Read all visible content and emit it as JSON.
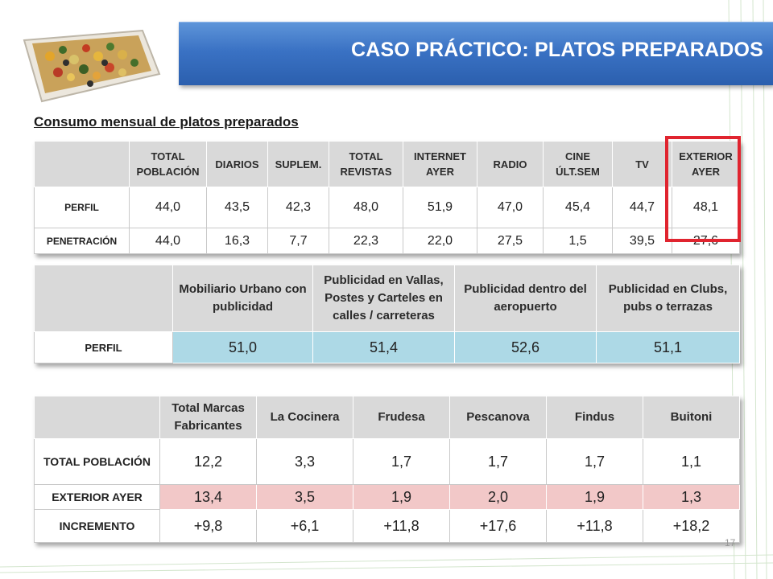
{
  "slide": {
    "title": "CASO PRÁCTICO: PLATOS PREPARADOS",
    "subtitle": "Consumo mensual de platos preparados",
    "page_number": "17"
  },
  "table1": {
    "headers": [
      "TOTAL POBLACIÓN",
      "DIARIOS",
      "SUPLEM.",
      "TOTAL REVISTAS",
      "INTERNET AYER",
      "RADIO",
      "CINE ÚLT.SEM",
      "TV",
      "EXTERIOR AYER"
    ],
    "rows": [
      {
        "label": "PERFIL",
        "values": [
          "44,0",
          "43,5",
          "42,3",
          "48,0",
          "51,9",
          "47,0",
          "45,4",
          "44,7",
          "48,1"
        ]
      },
      {
        "label": "PENETRACIÓN",
        "values": [
          "44,0",
          "16,3",
          "7,7",
          "22,3",
          "22,0",
          "27,5",
          "1,5",
          "39,5",
          "27,6"
        ]
      }
    ]
  },
  "table2": {
    "headers": [
      "Mobiliario Urbano con publicidad",
      "Publicidad en Vallas, Postes y Carteles en calles / carreteras",
      "Publicidad dentro del aeropuerto",
      "Publicidad en Clubs, pubs o terrazas"
    ],
    "rows": [
      {
        "label": "PERFIL",
        "values": [
          "51,0",
          "51,4",
          "52,6",
          "51,1"
        ]
      }
    ]
  },
  "table3": {
    "headers": [
      "Total Marcas Fabricantes",
      "La Cocinera",
      "Frudesa",
      "Pescanova",
      "Findus",
      "Buitoni"
    ],
    "rows": [
      {
        "label": "TOTAL POBLACIÓN",
        "values": [
          "12,2",
          "3,3",
          "1,7",
          "1,7",
          "1,7",
          "1,1"
        ]
      },
      {
        "label": "EXTERIOR AYER",
        "values": [
          "13,4",
          "3,5",
          "1,9",
          "2,0",
          "1,9",
          "1,3"
        ]
      },
      {
        "label": "INCREMENTO",
        "values": [
          "+9,8",
          "+6,1",
          "+11,8",
          "+17,6",
          "+11,8",
          "+18,2"
        ]
      }
    ]
  },
  "colors": {
    "banner": "#3a72c4",
    "highlight": "#e0242f",
    "perfil_fill": "#add9e6",
    "exterior_fill": "#f2c8c8",
    "header_fill": "#d9d9d9"
  }
}
